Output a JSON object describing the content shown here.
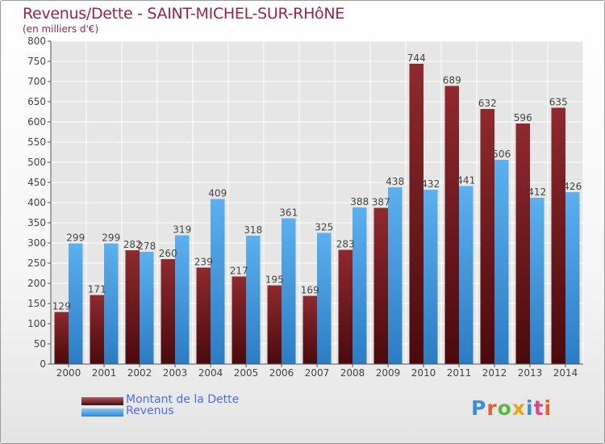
{
  "title": "Revenus/Dette - SAINT-MICHEL-SUR-RHôNE",
  "subtitle": "(en milliers d'€)",
  "brand": {
    "letters": [
      "P",
      "r",
      "o",
      "x",
      "i",
      "t",
      "i"
    ],
    "colors": [
      "#3a8fd6",
      "#e5602a",
      "#59b947",
      "#e8a21c",
      "#3a8fd6",
      "#d64a8e",
      "#e5602a"
    ]
  },
  "chart_data": {
    "type": "bar",
    "categories": [
      "2000",
      "2001",
      "2002",
      "2003",
      "2004",
      "2005",
      "2006",
      "2007",
      "2008",
      "2009",
      "2010",
      "2011",
      "2012",
      "2013",
      "2014"
    ],
    "series": [
      {
        "name": "Montant de la Dette",
        "color": "#7a1e22",
        "values": [
          129,
          171,
          282,
          260,
          239,
          217,
          195,
          169,
          283,
          387,
          744,
          689,
          632,
          596,
          635
        ],
        "labels": [
          "129",
          "171",
          "282",
          "260",
          "239",
          "217",
          "195",
          "169",
          "283",
          "387",
          "744",
          "689",
          "632",
          "596",
          "635"
        ]
      },
      {
        "name": "Revenus",
        "color": "#3b9ae4",
        "values": [
          299,
          299,
          278,
          319,
          409,
          318,
          361,
          325,
          388,
          438,
          432,
          441,
          506,
          412,
          426
        ],
        "labels": [
          "299",
          "299",
          "278",
          "319",
          "409",
          "318",
          "361",
          "325",
          "388",
          "438",
          "432",
          "441",
          "506",
          "412",
          "426"
        ]
      }
    ],
    "ylim": [
      0,
      800
    ],
    "yticks": [
      0,
      50,
      100,
      150,
      200,
      250,
      300,
      350,
      400,
      450,
      500,
      550,
      600,
      650,
      700,
      750,
      800
    ],
    "grid": true,
    "legend_position": "bottom-left"
  }
}
